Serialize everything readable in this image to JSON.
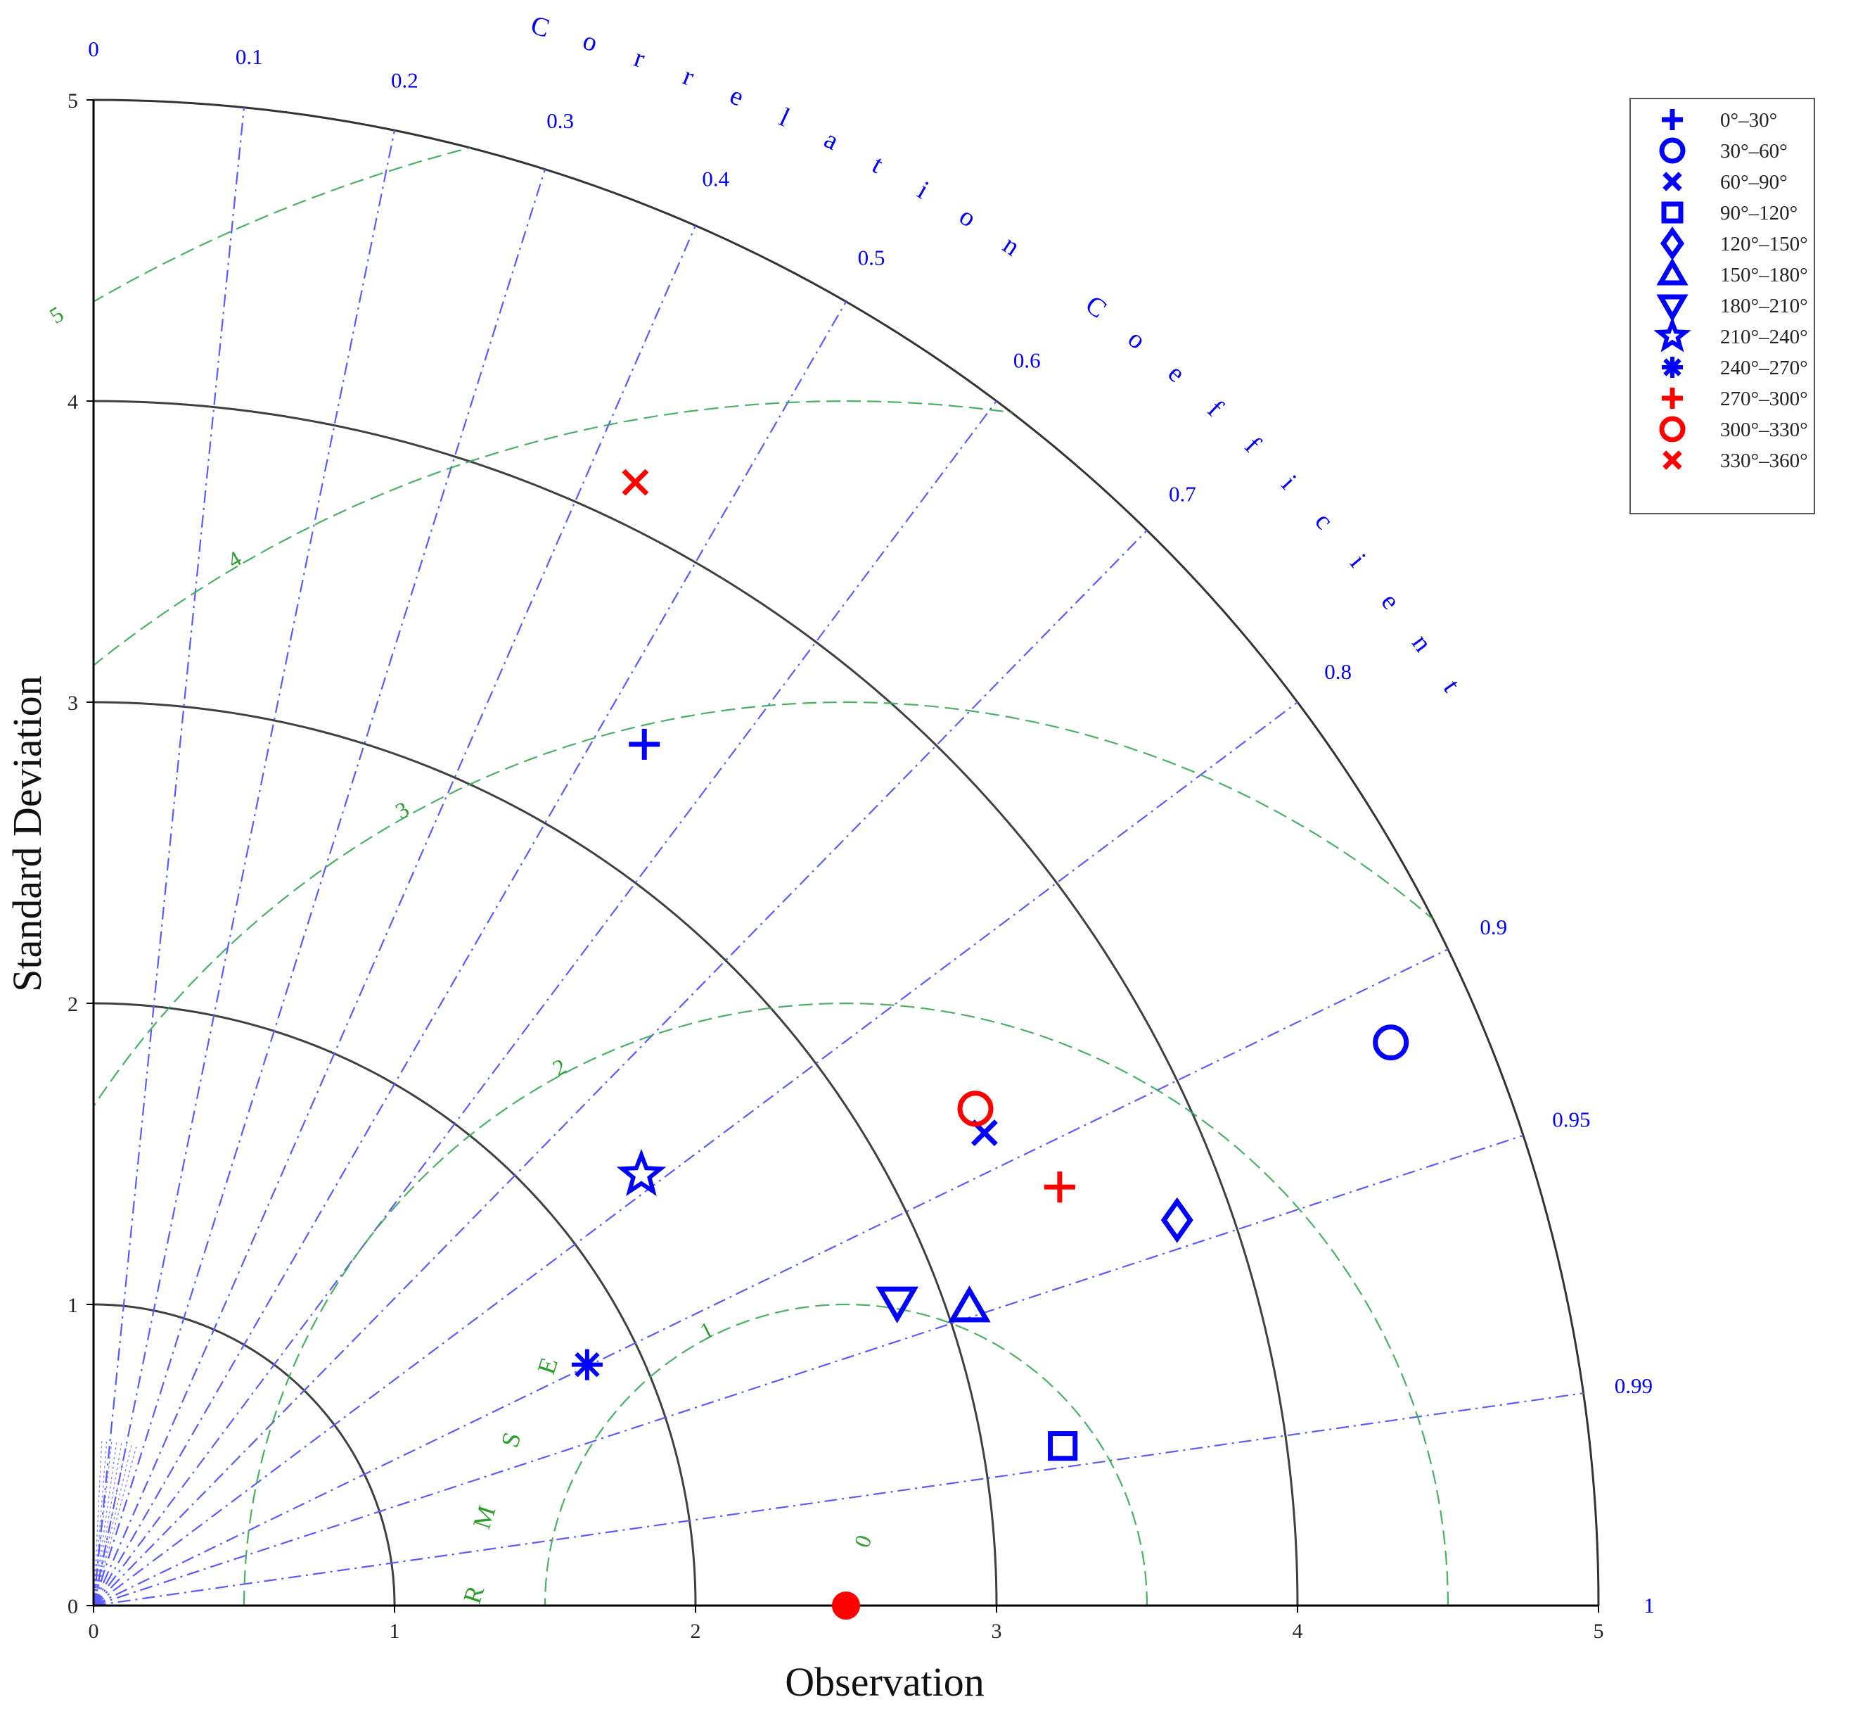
{
  "chart_data": {
    "type": "scatter",
    "subtype": "taylor-diagram",
    "xlabel": "Observation",
    "ylabel": "Standard Deviation",
    "angular_label": "Correlation Coefficient",
    "rmse_label": "RMSE",
    "std_range": [
      0,
      5
    ],
    "std_ticks": [
      "0",
      "1",
      "2",
      "3",
      "4",
      "5"
    ],
    "correlation_ticks": [
      {
        "label": "0",
        "r": 0
      },
      {
        "label": "0.1",
        "r": 0.1
      },
      {
        "label": "0.2",
        "r": 0.2
      },
      {
        "label": "0.3",
        "r": 0.3
      },
      {
        "label": "0.4",
        "r": 0.4
      },
      {
        "label": "0.5",
        "r": 0.5
      },
      {
        "label": "0.6",
        "r": 0.6
      },
      {
        "label": "0.7",
        "r": 0.7
      },
      {
        "label": "0.8",
        "r": 0.8
      },
      {
        "label": "0.9",
        "r": 0.9
      },
      {
        "label": "0.95",
        "r": 0.95
      },
      {
        "label": "0.99",
        "r": 0.99
      },
      {
        "label": "1",
        "r": 1
      }
    ],
    "rmse_ticks": [
      "0",
      "1",
      "2",
      "3",
      "4",
      "5"
    ],
    "reference": {
      "name": "Observation",
      "std": 2.5,
      "color": "#ff0000"
    },
    "series": [
      {
        "name": "0°–30°",
        "marker": "plus",
        "color": "#0000ff",
        "x": 1.83,
        "y": 2.86
      },
      {
        "name": "30°–60°",
        "marker": "circle",
        "color": "#0000ff",
        "x": 4.31,
        "y": 1.87
      },
      {
        "name": "60°–90°",
        "marker": "x",
        "color": "#0000ff",
        "x": 2.96,
        "y": 1.57
      },
      {
        "name": "90°–120°",
        "marker": "square",
        "color": "#0000ff",
        "x": 3.22,
        "y": 0.53
      },
      {
        "name": "120°–150°",
        "marker": "diamond",
        "color": "#0000ff",
        "x": 3.6,
        "y": 1.28
      },
      {
        "name": "150°–180°",
        "marker": "triangle-up",
        "color": "#0000ff",
        "x": 2.91,
        "y": 0.99
      },
      {
        "name": "180°–210°",
        "marker": "triangle-down",
        "color": "#0000ff",
        "x": 2.67,
        "y": 1.01
      },
      {
        "name": "210°–240°",
        "marker": "star",
        "color": "#0000ff",
        "x": 1.82,
        "y": 1.43
      },
      {
        "name": "240°–270°",
        "marker": "asterisk",
        "color": "#0000ff",
        "x": 1.64,
        "y": 0.8
      },
      {
        "name": "270°–300°",
        "marker": "plus",
        "color": "#ff0000",
        "x": 3.21,
        "y": 1.39
      },
      {
        "name": "300°–330°",
        "marker": "circle",
        "color": "#ff0000",
        "x": 2.93,
        "y": 1.65
      },
      {
        "name": "330°–360°",
        "marker": "x",
        "color": "#ff0000",
        "x": 1.8,
        "y": 3.73
      }
    ],
    "legend_position": "top-right",
    "colors": {
      "axis": "#000000",
      "std_arcs": "#404040",
      "correlation_lines": "#5a5aff",
      "rmse_arcs": "#34a853",
      "tick_blue": "#0000ff",
      "rmse_text": "#2ca02c"
    }
  }
}
